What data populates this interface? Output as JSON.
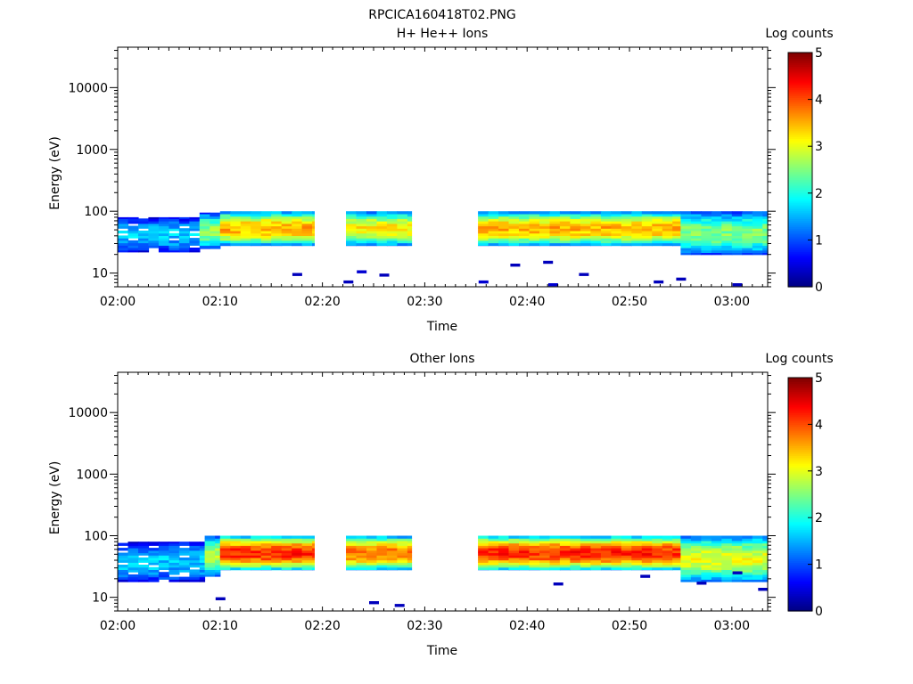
{
  "figure_title": "RPCICA160418T02.PNG",
  "colors": {
    "background": "#ffffff",
    "colormap": [
      "#00007f",
      "#0000ff",
      "#007fff",
      "#00ffff",
      "#7fff7f",
      "#ffff00",
      "#ff7f00",
      "#ff0000",
      "#7f0000"
    ]
  },
  "chart_data": [
    {
      "type": "heatmap",
      "title": "H+ He++ Ions",
      "xlabel": "Time",
      "ylabel": "Energy (eV)",
      "colorbar_label": "Log counts",
      "x_ticks": [
        "02:00",
        "02:10",
        "02:20",
        "02:30",
        "02:40",
        "02:50",
        "03:00"
      ],
      "x_range_minutes": [
        0,
        63.5
      ],
      "y_scale": "log",
      "y_range": [
        6,
        45000
      ],
      "y_ticks": [
        {
          "value": 10,
          "label": "10"
        },
        {
          "value": 100,
          "label": "100"
        },
        {
          "value": 1000,
          "label": "1000"
        },
        {
          "value": 10000,
          "label": "10000"
        }
      ],
      "color_range": [
        0,
        5
      ],
      "colorbar_ticks": [
        "0",
        "1",
        "2",
        "3",
        "4",
        "5"
      ],
      "data_gaps_minutes": [
        [
          19.2,
          22.3
        ],
        [
          28.7,
          35.2
        ]
      ],
      "profiles": [
        {
          "t": [
            0,
            8
          ],
          "lo": 22,
          "hi": 80,
          "peak": 1.6
        },
        {
          "t": [
            8,
            10
          ],
          "lo": 25,
          "hi": 95,
          "peak": 2.6
        },
        {
          "t": [
            10,
            19.2
          ],
          "lo": 28,
          "hi": 100,
          "peak": 3.5
        },
        {
          "t": [
            22.3,
            28.7
          ],
          "lo": 28,
          "hi": 100,
          "peak": 3.2
        },
        {
          "t": [
            35.2,
            55
          ],
          "lo": 28,
          "hi": 100,
          "peak": 3.5
        },
        {
          "t": [
            55,
            63.5
          ],
          "lo": 20,
          "hi": 100,
          "peak": 2.5
        }
      ],
      "sparse_points": [
        {
          "t": 17.5,
          "e": 9.5,
          "v": 0.3
        },
        {
          "t": 22.5,
          "e": 7.2,
          "v": 0.3
        },
        {
          "t": 23.8,
          "e": 10.5,
          "v": 0.4
        },
        {
          "t": 26.0,
          "e": 9.3,
          "v": 0.3
        },
        {
          "t": 35.7,
          "e": 7.2,
          "v": 0.4
        },
        {
          "t": 38.8,
          "e": 13.5,
          "v": 0.3
        },
        {
          "t": 42.0,
          "e": 15.0,
          "v": 0.3
        },
        {
          "t": 42.5,
          "e": 6.5,
          "v": 0.4
        },
        {
          "t": 45.5,
          "e": 9.5,
          "v": 0.3
        },
        {
          "t": 52.8,
          "e": 7.2,
          "v": 0.3
        },
        {
          "t": 55.0,
          "e": 8.0,
          "v": 0.3
        },
        {
          "t": 60.5,
          "e": 6.5,
          "v": 0.3
        }
      ]
    },
    {
      "type": "heatmap",
      "title": "Other Ions",
      "xlabel": "Time",
      "ylabel": "Energy (eV)",
      "colorbar_label": "Log counts",
      "x_ticks": [
        "02:00",
        "02:10",
        "02:20",
        "02:30",
        "02:40",
        "02:50",
        "03:00"
      ],
      "x_range_minutes": [
        0,
        63.5
      ],
      "y_scale": "log",
      "y_range": [
        6,
        45000
      ],
      "y_ticks": [
        {
          "value": 10,
          "label": "10"
        },
        {
          "value": 100,
          "label": "100"
        },
        {
          "value": 1000,
          "label": "1000"
        },
        {
          "value": 10000,
          "label": "10000"
        }
      ],
      "color_range": [
        0,
        5
      ],
      "colorbar_ticks": [
        "0",
        "1",
        "2",
        "3",
        "4",
        "5"
      ],
      "data_gaps_minutes": [
        [
          19.2,
          22.3
        ],
        [
          28.7,
          35.2
        ]
      ],
      "profiles": [
        {
          "t": [
            0,
            8.5
          ],
          "lo": 18,
          "hi": 80,
          "peak": 1.6
        },
        {
          "t": [
            8.5,
            10
          ],
          "lo": 22,
          "hi": 100,
          "peak": 2.8
        },
        {
          "t": [
            10,
            19.2
          ],
          "lo": 28,
          "hi": 100,
          "peak": 4.2
        },
        {
          "t": [
            22.3,
            28.7
          ],
          "lo": 28,
          "hi": 100,
          "peak": 3.8
        },
        {
          "t": [
            35.2,
            55
          ],
          "lo": 28,
          "hi": 100,
          "peak": 4.2
        },
        {
          "t": [
            55,
            63.5
          ],
          "lo": 18,
          "hi": 100,
          "peak": 3.0
        }
      ],
      "sparse_points": [
        {
          "t": 10.0,
          "e": 9.5,
          "v": 0.3
        },
        {
          "t": 25.0,
          "e": 8.2,
          "v": 0.3
        },
        {
          "t": 27.5,
          "e": 7.4,
          "v": 0.3
        },
        {
          "t": 43.0,
          "e": 16.5,
          "v": 0.3
        },
        {
          "t": 51.5,
          "e": 22.0,
          "v": 0.3
        },
        {
          "t": 57.0,
          "e": 17.0,
          "v": 0.3
        },
        {
          "t": 60.5,
          "e": 25.0,
          "v": 0.3
        },
        {
          "t": 63.0,
          "e": 13.5,
          "v": 0.3
        }
      ]
    }
  ]
}
